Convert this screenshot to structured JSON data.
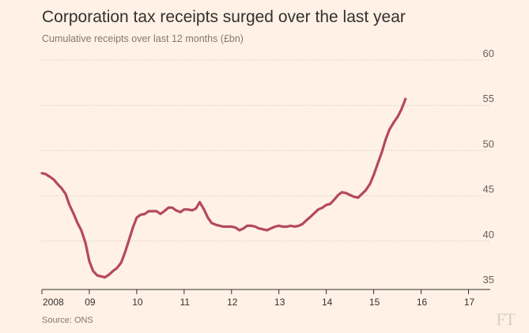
{
  "header": {
    "title": "Corporation tax receipts surged over the last year",
    "subtitle": "Cumulative receipts over last 12 months (£bn)"
  },
  "footer": {
    "source": "Source: ONS",
    "brand": "FT"
  },
  "colors": {
    "background": "#fff1e5",
    "line": "#b5495b",
    "grid": "#cfc5bd",
    "axis": "#33302e"
  },
  "chart_data": {
    "type": "line",
    "title": "Corporation tax receipts surged over the last year",
    "subtitle": "Cumulative receipts over last 12 months (£bn)",
    "xlabel": "",
    "ylabel": "",
    "xlim": [
      2008.0,
      2017.25
    ],
    "ylim": [
      35,
      60
    ],
    "yticks": [
      35,
      40,
      45,
      50,
      55,
      60
    ],
    "xtick_values": [
      2008,
      2009,
      2010,
      2011,
      2012,
      2013,
      2014,
      2015,
      2016,
      2017
    ],
    "xtick_labels": [
      "2008",
      "09",
      "10",
      "11",
      "12",
      "13",
      "14",
      "15",
      "16",
      "17"
    ],
    "y_axis_side": "right",
    "grid": "horizontal dotted",
    "series": [
      {
        "values": [
          [
            2008.0,
            47.5
          ],
          [
            2008.08,
            47.4
          ],
          [
            2008.17,
            47.1
          ],
          [
            2008.25,
            46.8
          ],
          [
            2008.33,
            46.3
          ],
          [
            2008.42,
            45.8
          ],
          [
            2008.5,
            45.2
          ],
          [
            2008.58,
            44.0
          ],
          [
            2008.67,
            43.0
          ],
          [
            2008.75,
            42.0
          ],
          [
            2008.83,
            41.2
          ],
          [
            2008.92,
            39.8
          ],
          [
            2009.0,
            37.8
          ],
          [
            2009.08,
            36.7
          ],
          [
            2009.17,
            36.2
          ],
          [
            2009.25,
            36.1
          ],
          [
            2009.33,
            36.0
          ],
          [
            2009.42,
            36.3
          ],
          [
            2009.5,
            36.7
          ],
          [
            2009.58,
            37.0
          ],
          [
            2009.67,
            37.6
          ],
          [
            2009.75,
            38.7
          ],
          [
            2009.83,
            40.0
          ],
          [
            2009.92,
            41.5
          ],
          [
            2010.0,
            42.6
          ],
          [
            2010.08,
            42.9
          ],
          [
            2010.17,
            43.0
          ],
          [
            2010.25,
            43.3
          ],
          [
            2010.33,
            43.3
          ],
          [
            2010.42,
            43.3
          ],
          [
            2010.5,
            43.0
          ],
          [
            2010.58,
            43.3
          ],
          [
            2010.67,
            43.7
          ],
          [
            2010.75,
            43.7
          ],
          [
            2010.83,
            43.4
          ],
          [
            2010.92,
            43.2
          ],
          [
            2011.0,
            43.5
          ],
          [
            2011.08,
            43.5
          ],
          [
            2011.17,
            43.4
          ],
          [
            2011.25,
            43.6
          ],
          [
            2011.33,
            44.3
          ],
          [
            2011.42,
            43.5
          ],
          [
            2011.5,
            42.6
          ],
          [
            2011.58,
            42.0
          ],
          [
            2011.67,
            41.8
          ],
          [
            2011.75,
            41.7
          ],
          [
            2011.83,
            41.6
          ],
          [
            2011.92,
            41.6
          ],
          [
            2012.0,
            41.6
          ],
          [
            2012.08,
            41.5
          ],
          [
            2012.17,
            41.2
          ],
          [
            2012.25,
            41.4
          ],
          [
            2012.33,
            41.7
          ],
          [
            2012.42,
            41.7
          ],
          [
            2012.5,
            41.6
          ],
          [
            2012.58,
            41.4
          ],
          [
            2012.67,
            41.3
          ],
          [
            2012.75,
            41.2
          ],
          [
            2012.83,
            41.4
          ],
          [
            2012.92,
            41.6
          ],
          [
            2013.0,
            41.7
          ],
          [
            2013.08,
            41.6
          ],
          [
            2013.17,
            41.6
          ],
          [
            2013.25,
            41.7
          ],
          [
            2013.33,
            41.6
          ],
          [
            2013.42,
            41.7
          ],
          [
            2013.5,
            41.9
          ],
          [
            2013.58,
            42.3
          ],
          [
            2013.67,
            42.7
          ],
          [
            2013.75,
            43.1
          ],
          [
            2013.83,
            43.5
          ],
          [
            2013.92,
            43.7
          ],
          [
            2014.0,
            44.0
          ],
          [
            2014.08,
            44.1
          ],
          [
            2014.17,
            44.6
          ],
          [
            2014.25,
            45.1
          ],
          [
            2014.33,
            45.4
          ],
          [
            2014.42,
            45.3
          ],
          [
            2014.5,
            45.1
          ],
          [
            2014.58,
            44.9
          ],
          [
            2014.67,
            44.8
          ],
          [
            2014.75,
            45.2
          ],
          [
            2014.83,
            45.6
          ],
          [
            2014.92,
            46.3
          ],
          [
            2015.0,
            47.3
          ],
          [
            2015.08,
            48.5
          ],
          [
            2015.17,
            49.8
          ],
          [
            2015.25,
            51.2
          ],
          [
            2015.33,
            52.3
          ],
          [
            2015.42,
            53.1
          ],
          [
            2015.5,
            53.7
          ],
          [
            2015.58,
            54.5
          ],
          [
            2015.67,
            55.7
          ]
        ]
      }
    ]
  }
}
